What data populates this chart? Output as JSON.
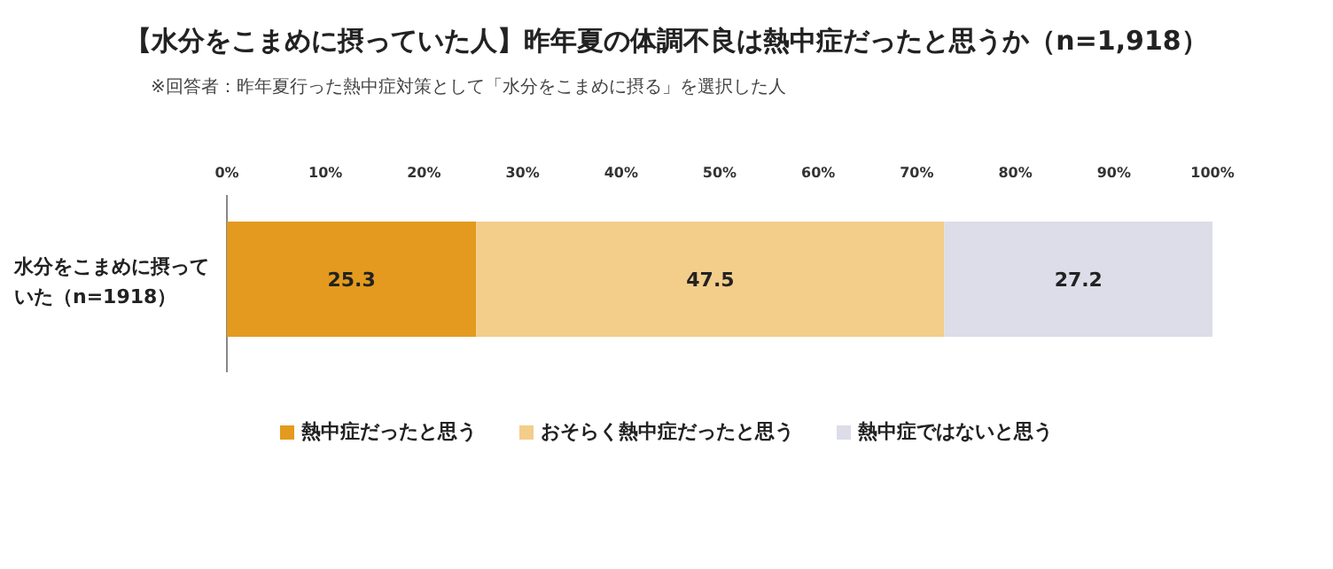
{
  "chart_data": {
    "type": "bar",
    "orientation": "horizontal",
    "stacked": true,
    "title": "【水分をこまめに摂っていた人】昨年夏の体調不良は熱中症だったと思うか（n=1,918）",
    "subtitle": "※回答者：昨年夏行った熱中症対策として「水分をこまめに摂る」を選択した人",
    "categories": [
      "水分をこまめに摂っていた（n=1918）"
    ],
    "series": [
      {
        "name": "熱中症だったと思う",
        "color": "#e39a1e",
        "values": [
          25.3
        ]
      },
      {
        "name": "おそらく熱中症だったと思う",
        "color": "#f3cd8a",
        "values": [
          47.5
        ]
      },
      {
        "name": "熱中症ではないと思う",
        "color": "#dcdde9",
        "values": [
          27.2
        ]
      }
    ],
    "xlim": [
      0,
      100
    ],
    "xticks": [
      {
        "value": 0,
        "label": "0%"
      },
      {
        "value": 10,
        "label": "10%"
      },
      {
        "value": 20,
        "label": "20%"
      },
      {
        "value": 30,
        "label": "30%"
      },
      {
        "value": 40,
        "label": "40%"
      },
      {
        "value": 50,
        "label": "50%"
      },
      {
        "value": 60,
        "label": "60%"
      },
      {
        "value": 70,
        "label": "70%"
      },
      {
        "value": 80,
        "label": "80%"
      },
      {
        "value": 90,
        "label": "90%"
      },
      {
        "value": 100,
        "label": "100%"
      }
    ],
    "data_labels": true,
    "legend": "bottom",
    "grid": false
  }
}
